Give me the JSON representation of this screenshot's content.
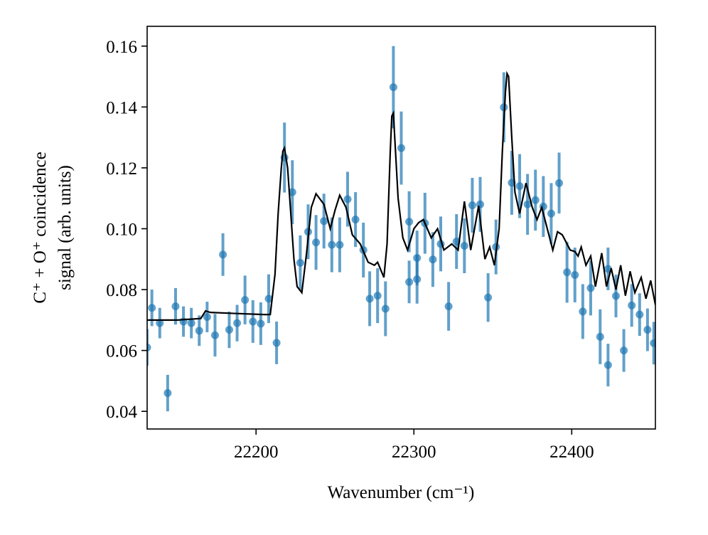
{
  "chart_data": {
    "type": "scatter",
    "xlabel": "Wavenumber (cm⁻¹)",
    "ylabel": [
      "C⁺ + O⁺ coincidence",
      "signal (arb. units)"
    ],
    "xlim": [
      22131,
      22453
    ],
    "ylim": [
      0.0342,
      0.1665
    ],
    "xticks": [
      22200,
      22300,
      22400
    ],
    "yticks": [
      0.04,
      0.06,
      0.08,
      {
        "value": 0.1,
        "label": "0.10"
      },
      0.12,
      0.14,
      0.16
    ],
    "series": [
      {
        "type": "scatter",
        "color": "#1f77b4",
        "x": [
          22131,
          22134,
          22139,
          22144,
          22149,
          22154,
          22159,
          22164,
          22169,
          22174,
          22179,
          22183,
          22188,
          22193,
          22198,
          22203,
          22208,
          22213,
          22218,
          22223,
          22228,
          22233,
          22238,
          22243,
          22248,
          22253,
          22258,
          22263,
          22268,
          22272,
          22277,
          22282,
          22287,
          22292,
          22297,
          22297,
          22302,
          22302,
          22307,
          22312,
          22317,
          22322,
          22327,
          22332,
          22337,
          22342,
          22347,
          22352,
          22357,
          22362,
          22367,
          22372,
          22377,
          22382,
          22387,
          22392,
          22397,
          22402,
          22407,
          22412,
          22418,
          22423,
          22423,
          22428,
          22433,
          22438,
          22443,
          22448,
          22452
        ],
        "values": [
          0.061,
          0.074,
          0.069,
          0.046,
          0.0745,
          0.0695,
          0.069,
          0.0665,
          0.071,
          0.065,
          0.0915,
          0.0668,
          0.069,
          0.0766,
          0.0695,
          0.0688,
          0.077,
          0.0625,
          0.1234,
          0.112,
          0.0888,
          0.099,
          0.0955,
          0.1025,
          0.0947,
          0.0947,
          0.1097,
          0.103,
          0.093,
          0.077,
          0.078,
          0.0737,
          0.1465,
          0.1265,
          0.1023,
          0.0825,
          0.0834,
          0.0904,
          0.1018,
          0.0899,
          0.095,
          0.0745,
          0.0958,
          0.0944,
          0.1077,
          0.108,
          0.0774,
          0.094,
          0.1399,
          0.1151,
          0.114,
          0.108,
          0.1094,
          0.1073,
          0.105,
          0.115,
          0.0857,
          0.0848,
          0.0728,
          0.0805,
          0.0645,
          0.0552,
          0.0868,
          0.0779,
          0.06,
          0.0748,
          0.0718,
          0.0668,
          0.0624
        ],
        "errors": [
          0.006,
          0.006,
          0.005,
          0.006,
          0.006,
          0.005,
          0.005,
          0.005,
          0.005,
          0.007,
          0.007,
          0.006,
          0.006,
          0.008,
          0.007,
          0.007,
          0.008,
          0.007,
          0.0115,
          0.0105,
          0.009,
          0.009,
          0.009,
          0.009,
          0.009,
          0.009,
          0.009,
          0.009,
          0.009,
          0.009,
          0.009,
          0.009,
          0.0135,
          0.012,
          0.01,
          0.007,
          0.008,
          0.009,
          0.01,
          0.009,
          0.009,
          0.008,
          0.009,
          0.009,
          0.009,
          0.009,
          0.008,
          0.009,
          0.0115,
          0.0105,
          0.0105,
          0.01,
          0.01,
          0.01,
          0.01,
          0.01,
          0.01,
          0.009,
          0.009,
          0.009,
          0.009,
          0.007,
          0.007,
          0.007,
          0.007,
          0.007,
          0.007,
          0.007,
          0.007
        ]
      },
      {
        "type": "line",
        "color": "#000000",
        "x": [
          22131,
          22150,
          22165,
          22168,
          22171,
          22185,
          22205,
          22209,
          22212,
          22214,
          22216,
          22217,
          22218,
          22220,
          22222,
          22224,
          22226,
          22229,
          22232,
          22235,
          22238,
          22243,
          22247,
          22250,
          22253,
          22257,
          22261,
          22266,
          22271,
          22275,
          22277,
          22281,
          22283,
          22285,
          22286,
          22287,
          22290,
          22293,
          22296,
          22300,
          22303,
          22306,
          22311,
          22315,
          22319,
          22324,
          22328,
          22332,
          22336,
          22341,
          22345,
          22348,
          22351,
          22354,
          22356,
          22358,
          22359,
          22360,
          22362,
          22364,
          22367,
          22371,
          22375,
          22378,
          22381,
          22384,
          22388,
          22391,
          22394,
          22399,
          22402,
          22404,
          22406,
          22409,
          22412,
          22415,
          22419,
          22422,
          22425,
          22428,
          22431,
          22434,
          22437,
          22440,
          22444,
          22447,
          22450,
          22453
        ],
        "values": [
          0.07,
          0.07,
          0.0705,
          0.073,
          0.0725,
          0.0722,
          0.0718,
          0.0718,
          0.085,
          0.105,
          0.12,
          0.1255,
          0.1265,
          0.12,
          0.105,
          0.09,
          0.081,
          0.079,
          0.092,
          0.107,
          0.1115,
          0.108,
          0.1,
          0.106,
          0.111,
          0.107,
          0.098,
          0.095,
          0.089,
          0.088,
          0.089,
          0.084,
          0.095,
          0.125,
          0.137,
          0.138,
          0.11,
          0.097,
          0.093,
          0.1,
          0.102,
          0.103,
          0.097,
          0.1,
          0.093,
          0.095,
          0.093,
          0.109,
          0.093,
          0.1075,
          0.09,
          0.094,
          0.088,
          0.1,
          0.125,
          0.145,
          0.151,
          0.15,
          0.13,
          0.112,
          0.105,
          0.115,
          0.107,
          0.103,
          0.107,
          0.101,
          0.093,
          0.099,
          0.098,
          0.093,
          0.0925,
          0.091,
          0.094,
          0.088,
          0.091,
          0.081,
          0.092,
          0.081,
          0.087,
          0.08,
          0.088,
          0.078,
          0.086,
          0.079,
          0.084,
          0.077,
          0.083,
          0.075
        ]
      }
    ]
  }
}
